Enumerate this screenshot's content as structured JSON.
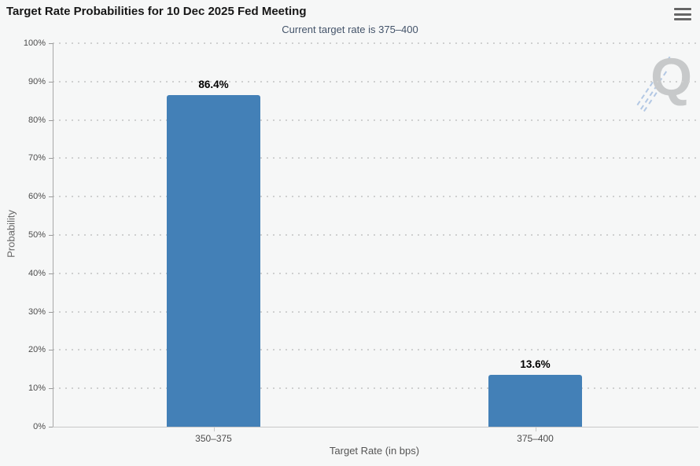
{
  "header": {
    "title": "Target Rate Probabilities for 10 Dec 2025 Fed Meeting",
    "subtitle": "Current target rate is 375–400",
    "menu_icon": "hamburger-menu"
  },
  "chart_data": {
    "type": "bar",
    "title": "Target Rate Probabilities for 10 Dec 2025 Fed Meeting",
    "subtitle": "Current target rate is 375–400",
    "categories": [
      "350–375",
      "375–400"
    ],
    "values": [
      86.4,
      13.6
    ],
    "value_labels": [
      "86.4%",
      "13.6%"
    ],
    "xlabel": "Target Rate (in bps)",
    "ylabel": "Probability",
    "ylim": [
      0,
      100
    ],
    "y_tick_step": 10,
    "y_tick_labels": [
      "0%",
      "10%",
      "20%",
      "30%",
      "40%",
      "50%",
      "60%",
      "70%",
      "80%",
      "90%",
      "100%"
    ],
    "grid": "dotted horizontal gridlines, light gray",
    "legend": "none",
    "bar_color": "#4380b7",
    "watermark_letter": "Q"
  },
  "colors": {
    "background": "#f6f7f7",
    "bar": "#4380b7",
    "title_text": "#171717",
    "subtitle_text": "#44546a",
    "axis_label": "#4d4d4d",
    "axis_title": "#666666",
    "gridline": "#cfd0d0",
    "watermark_gray": "#c7c9ca",
    "watermark_blue": "#9db9de"
  }
}
